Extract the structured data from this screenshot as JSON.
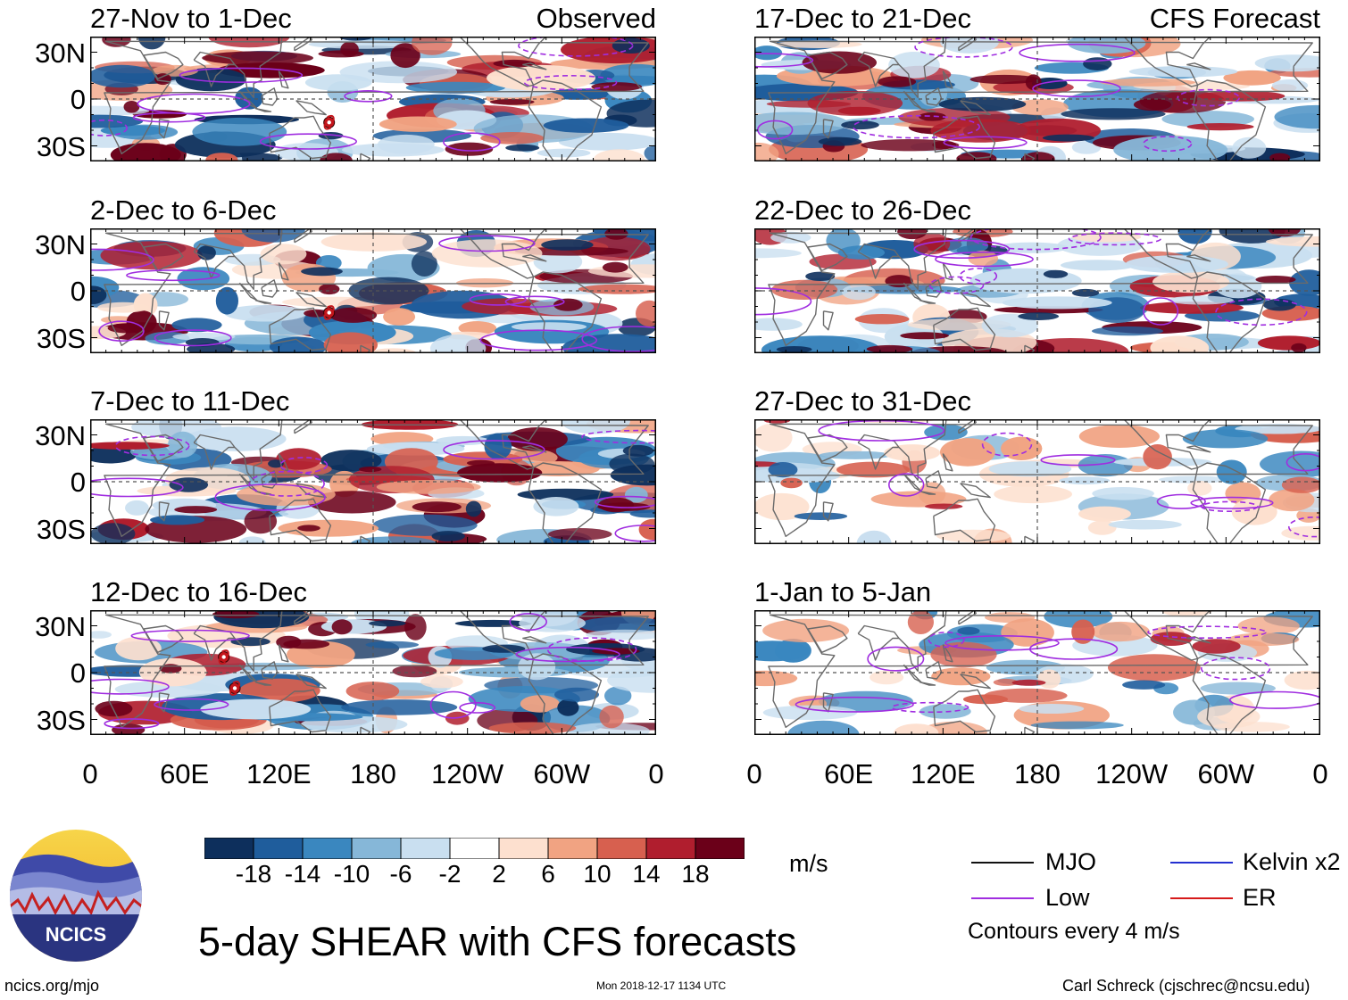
{
  "colors": {
    "scale": [
      "#0d2f5c",
      "#1f5d9c",
      "#3a87bf",
      "#86b7d8",
      "#c9dff0",
      "#ffffff",
      "#fde0cf",
      "#f1a382",
      "#d7604f",
      "#b01e2e",
      "#6b0019"
    ],
    "mjo": "#111111",
    "low": "#a02de0",
    "kelvin": "#2430d0",
    "er": "#d61a1a",
    "coast": "#6a6a6a"
  },
  "chart_data": {
    "type": "heatmap",
    "title": "5-day SHEAR with CFS forecasts",
    "variable": "SHEAR",
    "units": "m/s",
    "colorbar_ticks": [
      "-18",
      "-14",
      "-10",
      "-6",
      "-2",
      "2",
      "6",
      "10",
      "14",
      "18"
    ],
    "x_ticks": [
      "0",
      "60E",
      "120E",
      "180",
      "120W",
      "60W",
      "0"
    ],
    "y_ticks": [
      "30N",
      "0",
      "30S"
    ],
    "xlim": [
      0,
      360
    ],
    "ylim": [
      -40,
      40
    ],
    "panels": [
      {
        "id": "p1",
        "title": "27-Nov to 1-Dec",
        "corner": "Observed",
        "column": "left",
        "row": 0
      },
      {
        "id": "p2",
        "title": "2-Dec to 6-Dec",
        "corner": "",
        "column": "left",
        "row": 1
      },
      {
        "id": "p3",
        "title": "7-Dec to 11-Dec",
        "corner": "",
        "column": "left",
        "row": 2
      },
      {
        "id": "p4",
        "title": "12-Dec to 16-Dec",
        "corner": "",
        "column": "left",
        "row": 3
      },
      {
        "id": "p5",
        "title": "17-Dec to 21-Dec",
        "corner": "CFS Forecast",
        "column": "right",
        "row": 0
      },
      {
        "id": "p6",
        "title": "22-Dec to 26-Dec",
        "corner": "",
        "column": "right",
        "row": 1
      },
      {
        "id": "p7",
        "title": "27-Dec to 31-Dec",
        "corner": "",
        "column": "right",
        "row": 2
      },
      {
        "id": "p8",
        "title": "1-Jan to 5-Jan",
        "corner": "",
        "column": "right",
        "row": 3
      }
    ],
    "legend": {
      "mjo": "MJO",
      "kelvin": "Kelvin x2",
      "low": "Low",
      "er": "ER",
      "contours": "Contours every 4 m/s"
    }
  },
  "footer": {
    "logo_text": "NCICS",
    "site": "ncics.org/mjo",
    "timestamp": "Mon 2018-12-17 1134 UTC",
    "author": "Carl Schreck (cjschrec@ncsu.edu)"
  }
}
